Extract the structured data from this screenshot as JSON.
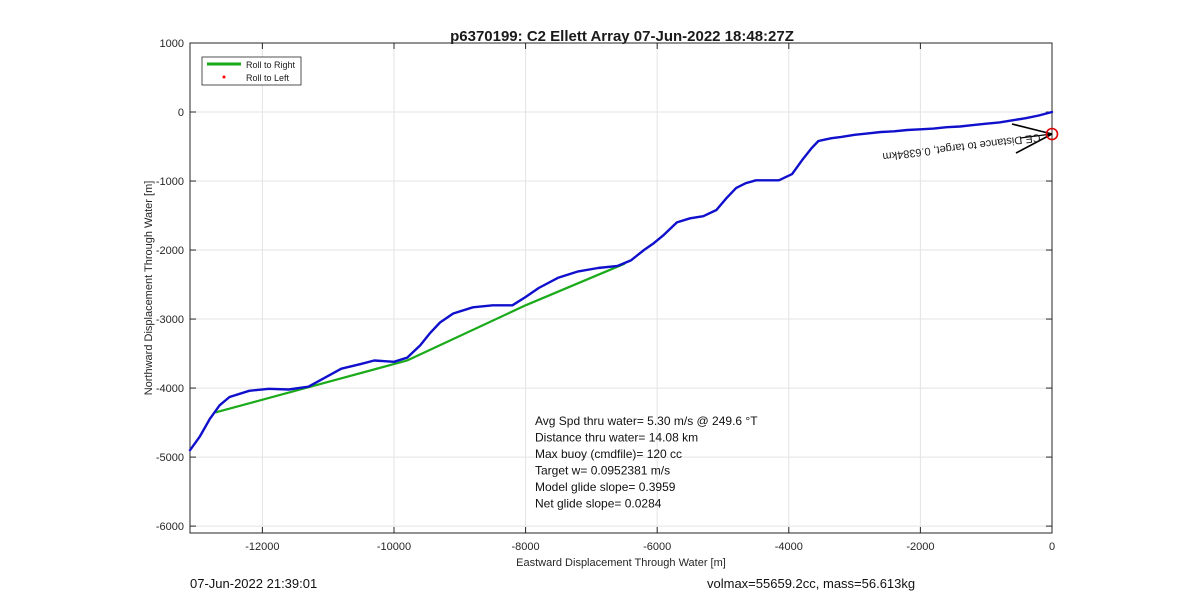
{
  "chart_data": {
    "type": "line",
    "title": "p6370199: C2 Ellett Array 07-Jun-2022 18:48:27Z",
    "xlabel": "Eastward Displacement Through Water [m]",
    "ylabel": "Northward Displacement Through Water [m]",
    "xlim": [
      -13100,
      0
    ],
    "ylim": [
      -6100,
      1000
    ],
    "xticks": [
      -12000,
      -10000,
      -8000,
      -6000,
      -4000,
      -2000,
      0
    ],
    "yticks": [
      1000,
      0,
      -1000,
      -2000,
      -3000,
      -4000,
      -5000,
      -6000
    ],
    "grid": true,
    "legend": {
      "placement": "top-left",
      "entries": [
        {
          "label": "Roll to Right",
          "color": "#1aaa1a",
          "style": "line"
        },
        {
          "label": "Roll to Left",
          "color": "#ff0000",
          "style": "dot"
        }
      ]
    },
    "series": [
      {
        "name": "Roll to Right",
        "color": "#1aaa1a",
        "x": [
          -12700,
          -9800,
          -8000,
          -6500
        ],
        "y": [
          -4350,
          -3600,
          -2800,
          -2200
        ]
      },
      {
        "color": "#1010cc",
        "x": [
          -13100,
          -12950,
          -12800,
          -12650,
          -12500,
          -12200,
          -11900,
          -11600,
          -11300,
          -11050,
          -10800,
          -10500,
          -10300,
          -10000,
          -9800,
          -9600,
          -9450,
          -9300,
          -9100,
          -8800,
          -8500,
          -8200,
          -8000,
          -7800,
          -7500,
          -7200,
          -6900,
          -6600,
          -6400,
          -6200,
          -6050,
          -5900,
          -5700,
          -5500,
          -5300,
          -5100,
          -4950,
          -4800,
          -4650,
          -4500,
          -4350,
          -4150,
          -3950,
          -3800,
          -3650,
          -3550,
          -3450,
          -3350,
          -3200,
          -3000,
          -2800,
          -2600,
          -2400,
          -2200,
          -2000,
          -1800,
          -1600,
          -1400,
          -1200,
          -1000,
          -800,
          -600,
          -400,
          -200,
          0
        ],
        "y": [
          -4900,
          -4700,
          -4450,
          -4250,
          -4130,
          -4040,
          -4010,
          -4020,
          -3980,
          -3850,
          -3720,
          -3650,
          -3600,
          -3620,
          -3560,
          -3380,
          -3200,
          -3050,
          -2920,
          -2830,
          -2800,
          -2800,
          -2680,
          -2550,
          -2400,
          -2310,
          -2260,
          -2230,
          -2150,
          -2000,
          -1900,
          -1780,
          -1600,
          -1540,
          -1510,
          -1420,
          -1250,
          -1100,
          -1030,
          -990,
          -990,
          -990,
          -900,
          -700,
          -520,
          -420,
          -400,
          -380,
          -360,
          -330,
          -310,
          -290,
          -280,
          -260,
          -250,
          -240,
          -220,
          -210,
          -190,
          -170,
          -150,
          -120,
          -90,
          -50,
          0
        ]
      }
    ],
    "annotations": [
      "Avg Spd thru water=  5.30 m/s @ 249.6 °T",
      "Distance thru water= 14.08 km",
      "Max buoy (cmdfile)= 120 cc",
      "Target w= 0.0952381 m/s",
      "Model glide slope= 0.3959",
      "Net glide slope= 0.0284"
    ],
    "rotated_text": "CE Distance to target, 0.6384km"
  },
  "footer": {
    "left": "07-Jun-2022 21:39:01",
    "right": "volmax=55659.2cc, mass=56.613kg"
  }
}
